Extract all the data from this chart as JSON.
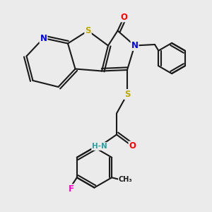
{
  "background_color": "#ebebeb",
  "bond_color": "#1a1a1a",
  "atom_colors": {
    "N": "#0000ff",
    "O": "#ff0000",
    "S": "#bbaa00",
    "F": "#ff00cc",
    "H": "#2aa0a0",
    "C": "#1a1a1a"
  },
  "bond_width": 1.5,
  "figsize": [
    3.0,
    3.0
  ],
  "dpi": 100
}
